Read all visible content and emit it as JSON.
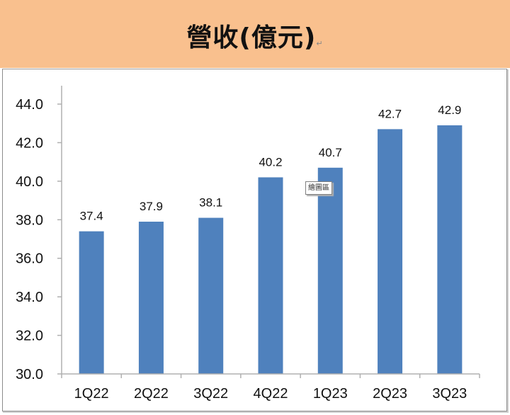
{
  "header": {
    "title": "營收(億元)",
    "paragraph_mark": "↵",
    "background_color": "#F9C08E"
  },
  "tooltip": {
    "text": "繪圖區"
  },
  "chart_data": {
    "type": "bar",
    "title": "營收(億元)",
    "xlabel": "",
    "ylabel": "",
    "categories": [
      "1Q22",
      "2Q22",
      "3Q22",
      "4Q22",
      "1Q23",
      "2Q23",
      "3Q23"
    ],
    "values": [
      37.4,
      37.9,
      38.1,
      40.2,
      40.7,
      42.7,
      42.9
    ],
    "data_labels": [
      "37.4",
      "37.9",
      "38.1",
      "40.2",
      "40.7",
      "42.7",
      "42.9"
    ],
    "ylim": [
      30.0,
      44.0
    ],
    "yticks": [
      "30.0",
      "32.0",
      "34.0",
      "36.0",
      "38.0",
      "40.0",
      "42.0",
      "44.0"
    ],
    "grid": false,
    "legend": null,
    "bar_color": "#4F81BD"
  }
}
